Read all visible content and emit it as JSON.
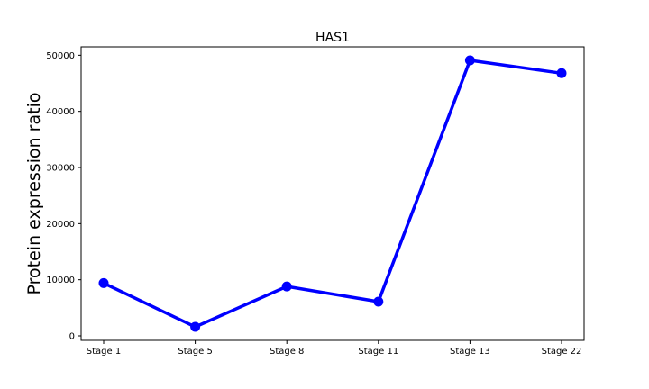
{
  "chart_data": {
    "type": "line",
    "title": "HAS1",
    "xlabel": "",
    "ylabel": "Protein expression ratio",
    "categories": [
      "Stage 1",
      "Stage 5",
      "Stage 8",
      "Stage 11",
      "Stage 13",
      "Stage 22"
    ],
    "series": [
      {
        "values": [
          9400,
          1600,
          8800,
          6100,
          49100,
          46800
        ]
      }
    ],
    "ylim": [
      -800,
      51500
    ],
    "yticks": [
      0,
      10000,
      20000,
      30000,
      40000,
      50000
    ],
    "ytick_labels": [
      "0",
      "10000",
      "20000",
      "30000",
      "40000",
      "50000"
    ],
    "grid": false,
    "legend": "none",
    "line_color": "#0000ff",
    "marker": "circle"
  }
}
